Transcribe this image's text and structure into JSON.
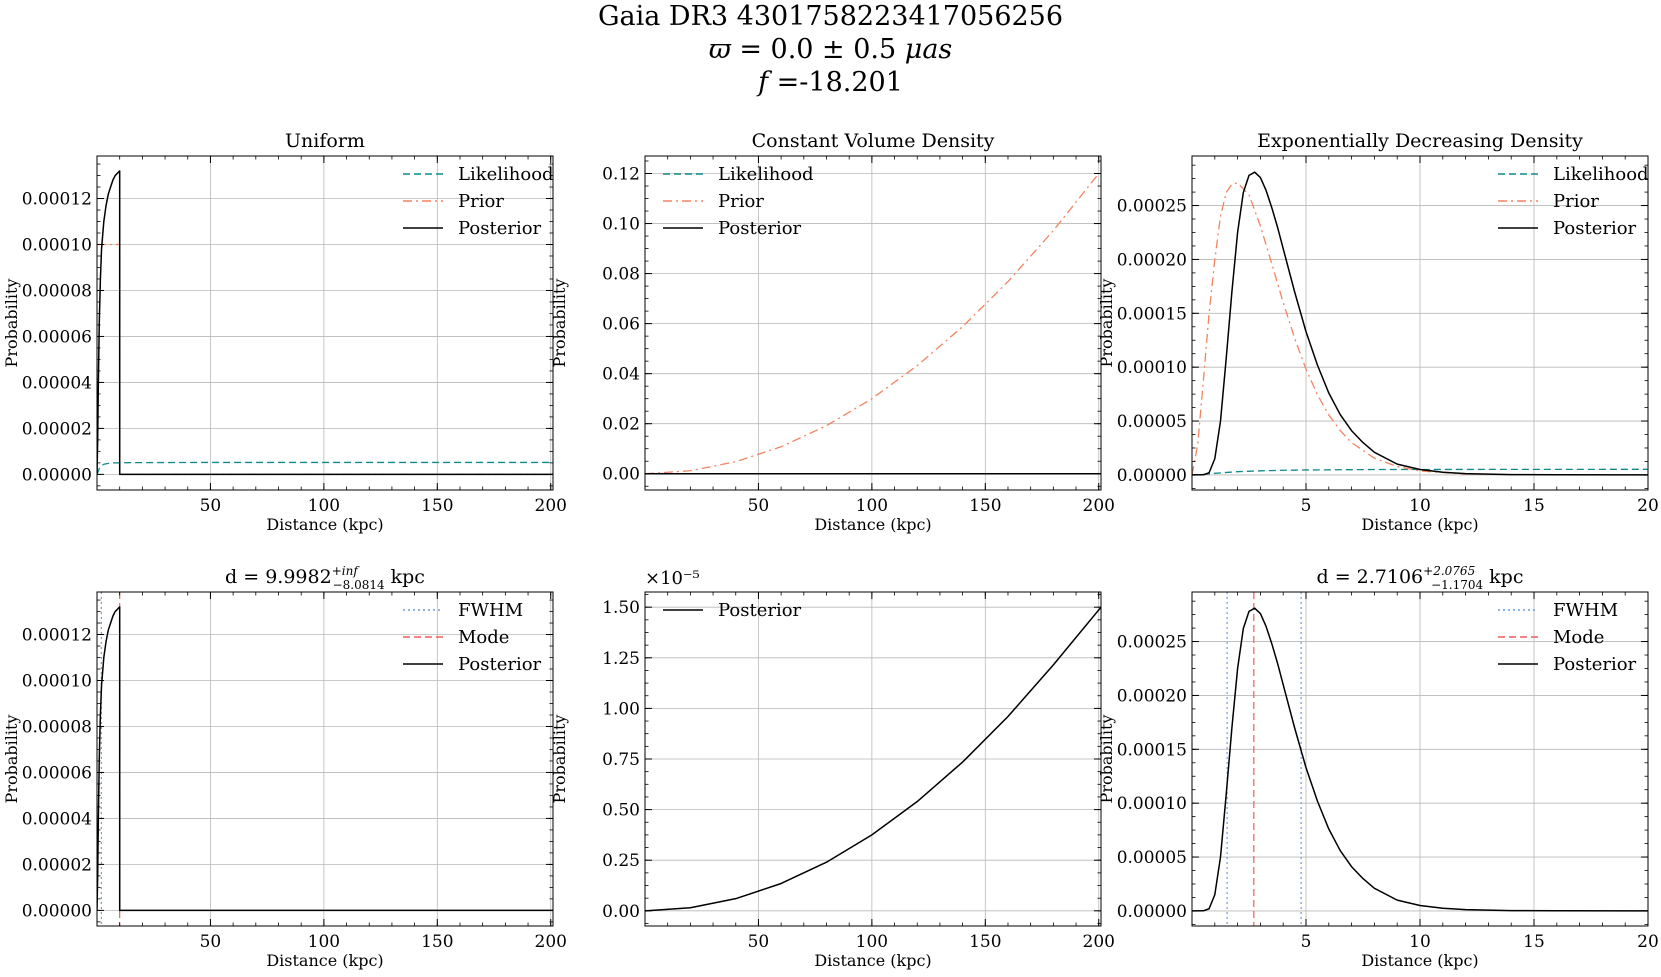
{
  "figure": {
    "suptitle_line1": "Gaia DR3 4301758223417056256",
    "suptitle_line2_symbol": "ϖ",
    "suptitle_line2_rest": " = 0.0 ± 0.5 ",
    "suptitle_line2_unit": "μas",
    "suptitle_line3_symbol": "f",
    "suptitle_line3_rest": " =-18.201"
  },
  "colors": {
    "likelihood": "#0e8a8a",
    "prior": "#f4845f",
    "posterior": "#000000",
    "fwhm": "#6a9ed6",
    "mode": "#f25b5b",
    "grid": "#b0b0b0"
  },
  "chart_data": [
    {
      "type": "line",
      "title": "Uniform",
      "xlabel": "Distance (kpc)",
      "ylabel": "Probability",
      "xlim": [
        0,
        201
      ],
      "ylim": [
        -6.8e-06,
        0.0001385
      ],
      "xticks": [
        50,
        100,
        150,
        200
      ],
      "xtick_labels": [
        "50",
        "100",
        "150",
        "200"
      ],
      "yticks": [
        0,
        2e-05,
        4e-05,
        6e-05,
        8e-05,
        0.0001,
        0.00012
      ],
      "ytick_labels": [
        "0.00000",
        "0.00002",
        "0.00004",
        "0.00006",
        "0.00008",
        "0.00010",
        "0.00012"
      ],
      "grid": true,
      "legend_position": "top-right",
      "series": [
        {
          "name": "Likelihood",
          "style": "dashed",
          "color": "#0e8a8a",
          "x": [
            0,
            1,
            2,
            3,
            5,
            8,
            15,
            50,
            100,
            150,
            201
          ],
          "y": [
            0,
            2.5e-06,
            3.8e-06,
            4.4e-06,
            4.8e-06,
            5e-06,
            5.1e-06,
            5.2e-06,
            5.2e-06,
            5.2e-06,
            5.2e-06
          ]
        },
        {
          "name": "Prior",
          "style": "dashdot",
          "color": "#f4845f",
          "x": [
            0,
            10,
            10.01,
            201
          ],
          "y": [
            0.0001,
            0.0001,
            0,
            0
          ]
        },
        {
          "name": "Posterior",
          "style": "solid",
          "color": "#000000",
          "x": [
            0,
            0.3,
            0.6,
            1,
            1.5,
            2,
            3,
            4,
            5,
            6,
            7,
            8,
            9,
            10,
            10.01,
            201
          ],
          "y": [
            0,
            1.5e-05,
            4e-05,
            6.6e-05,
            8.5e-05,
            9.8e-05,
            0.00011,
            0.000117,
            0.000122,
            0.000125,
            0.000128,
            0.00013,
            0.000131,
            0.000132,
            0,
            0
          ]
        }
      ]
    },
    {
      "type": "line",
      "title": "Constant Volume Density",
      "xlabel": "Distance (kpc)",
      "ylabel": "Probability",
      "xlim": [
        0,
        201
      ],
      "ylim": [
        -0.0065,
        0.127
      ],
      "xticks": [
        50,
        100,
        150,
        200
      ],
      "xtick_labels": [
        "50",
        "100",
        "150",
        "200"
      ],
      "yticks": [
        0,
        0.02,
        0.04,
        0.06,
        0.08,
        0.1,
        0.12
      ],
      "ytick_labels": [
        "0.00",
        "0.02",
        "0.04",
        "0.06",
        "0.08",
        "0.10",
        "0.12"
      ],
      "grid": true,
      "legend_position": "top-left",
      "series": [
        {
          "name": "Likelihood",
          "style": "dashed",
          "color": "#0e8a8a",
          "x": [
            0,
            201
          ],
          "y": [
            5e-06,
            5e-06
          ]
        },
        {
          "name": "Prior",
          "style": "dashdot",
          "color": "#f4845f",
          "x": [
            0,
            20,
            40,
            60,
            80,
            100,
            120,
            140,
            160,
            180,
            200
          ],
          "y": [
            0,
            0.0012,
            0.0048,
            0.0108,
            0.0192,
            0.03,
            0.0432,
            0.0588,
            0.0768,
            0.0972,
            0.12
          ]
        },
        {
          "name": "Posterior",
          "style": "solid",
          "color": "#000000",
          "x": [
            0,
            201
          ],
          "y": [
            1e-07,
            1e-07
          ]
        }
      ]
    },
    {
      "type": "line",
      "title": "Exponentially Decreasing Density",
      "xlabel": "Distance (kpc)",
      "ylabel": "Probability",
      "xlim": [
        0,
        20
      ],
      "ylim": [
        -1.4e-05,
        0.000296
      ],
      "xticks": [
        5,
        10,
        15,
        20
      ],
      "xtick_labels": [
        "5",
        "10",
        "15",
        "20"
      ],
      "yticks": [
        0,
        5e-05,
        0.0001,
        0.00015,
        0.0002,
        0.00025
      ],
      "ytick_labels": [
        "0.00000",
        "0.00005",
        "0.00010",
        "0.00015",
        "0.00020",
        "0.00025"
      ],
      "grid": true,
      "legend_position": "top-right",
      "series": [
        {
          "name": "Likelihood",
          "style": "dashed",
          "color": "#0e8a8a",
          "x": [
            0,
            0.5,
            1,
            2,
            3,
            4,
            5,
            8,
            12,
            20
          ],
          "y": [
            0,
            5e-07,
            1.5e-06,
            3e-06,
            3.8e-06,
            4.3e-06,
            4.6e-06,
            5e-06,
            5.1e-06,
            5.2e-06
          ]
        },
        {
          "name": "Prior",
          "style": "dashdot",
          "color": "#f4845f",
          "x": [
            0,
            0.25,
            0.5,
            0.75,
            1,
            1.25,
            1.5,
            1.75,
            2,
            2.5,
            3,
            3.5,
            4,
            4.5,
            5,
            5.5,
            6,
            6.5,
            7,
            8,
            9,
            10,
            12,
            15,
            20
          ],
          "y": [
            0,
            2.82e-05,
            8.78e-05,
            0.00015,
            0.0002,
            0.00024,
            0.000262,
            0.00027,
            0.000271,
            0.00026,
            0.000231,
            0.000196,
            0.00016,
            0.000127,
            9.82e-05,
            7.45e-05,
            5.57e-05,
            4.12e-05,
            3e-05,
            1.55e-05,
            7.8e-06,
            3.7e-06,
            8e-07,
            1e-07,
            0
          ]
        },
        {
          "name": "Posterior",
          "style": "solid",
          "color": "#000000",
          "x": [
            0,
            0.5,
            0.75,
            1,
            1.25,
            1.5,
            1.75,
            2,
            2.25,
            2.5,
            2.75,
            3,
            3.25,
            3.5,
            3.75,
            4,
            4.5,
            5,
            5.5,
            6,
            6.5,
            7,
            7.5,
            8,
            9,
            10,
            11,
            12,
            14,
            16,
            20
          ],
          "y": [
            0,
            1e-07,
            2e-06,
            1.5e-05,
            5e-05,
            0.000108,
            0.00017,
            0.000225,
            0.000262,
            0.000278,
            0.000281,
            0.000276,
            0.000264,
            0.000248,
            0.00023,
            0.00021,
            0.00017,
            0.000133,
            0.000102,
            7.6e-05,
            5.6e-05,
            4.1e-05,
            3e-05,
            2.1e-05,
            1e-05,
            5e-06,
            2.5e-06,
            1.2e-06,
            3e-07,
            1e-07,
            0
          ]
        }
      ]
    },
    {
      "type": "line",
      "title": "d = 9.9982",
      "title_sup": "+inf",
      "title_sub": "−8.0814",
      "title_unit": "kpc",
      "xlabel": "Distance (kpc)",
      "ylabel": "Probability",
      "xlim": [
        0,
        201
      ],
      "ylim": [
        -6.8e-06,
        0.0001385
      ],
      "xticks": [
        50,
        100,
        150,
        200
      ],
      "xtick_labels": [
        "50",
        "100",
        "150",
        "200"
      ],
      "yticks": [
        0,
        2e-05,
        4e-05,
        6e-05,
        8e-05,
        0.0001,
        0.00012
      ],
      "ytick_labels": [
        "0.00000",
        "0.00002",
        "0.00004",
        "0.00006",
        "0.00008",
        "0.00010",
        "0.00012"
      ],
      "grid": true,
      "legend_position": "top-right",
      "vlines": [
        {
          "name": "FWHM",
          "style": "dotted",
          "color": "#6a9ed6",
          "x": [
            1.9168
          ]
        },
        {
          "name": "Mode",
          "style": "dashed",
          "color": "#f25b5b",
          "x": [
            9.9982
          ]
        }
      ],
      "series": [
        {
          "name": "Posterior",
          "style": "solid",
          "color": "#000000",
          "x": [
            0,
            0.3,
            0.6,
            1,
            1.5,
            2,
            3,
            4,
            5,
            6,
            7,
            8,
            9,
            10,
            10.01,
            201
          ],
          "y": [
            0,
            1.5e-05,
            4e-05,
            6.6e-05,
            8.5e-05,
            9.8e-05,
            0.00011,
            0.000117,
            0.000122,
            0.000125,
            0.000128,
            0.00013,
            0.000131,
            0.000132,
            0,
            0
          ]
        }
      ]
    },
    {
      "type": "line",
      "title": "",
      "xlabel": "Distance (kpc)",
      "ylabel": "Probability",
      "y_offset_label": "×10⁻⁵",
      "xlim": [
        0,
        201
      ],
      "ylim": [
        -0.075,
        1.575
      ],
      "xticks": [
        50,
        100,
        150,
        200
      ],
      "xtick_labels": [
        "50",
        "100",
        "150",
        "200"
      ],
      "yticks": [
        0,
        0.25,
        0.5,
        0.75,
        1,
        1.25,
        1.5
      ],
      "ytick_labels": [
        "0.00",
        "0.25",
        "0.50",
        "0.75",
        "1.00",
        "1.25",
        "1.50"
      ],
      "grid": true,
      "legend_position": "top-left",
      "series": [
        {
          "name": "Posterior",
          "style": "solid",
          "color": "#000000",
          "x": [
            0,
            20,
            40,
            60,
            80,
            100,
            120,
            140,
            160,
            180,
            201
          ],
          "y": [
            0,
            0.015,
            0.06,
            0.135,
            0.24,
            0.375,
            0.54,
            0.735,
            0.96,
            1.215,
            1.5
          ]
        }
      ]
    },
    {
      "type": "line",
      "title": "d = 2.7106",
      "title_sup": "+2.0765",
      "title_sub": "−1.1704",
      "title_unit": "kpc",
      "xlabel": "Distance (kpc)",
      "ylabel": "Probability",
      "xlim": [
        0,
        20
      ],
      "ylim": [
        -1.4e-05,
        0.000296
      ],
      "xticks": [
        5,
        10,
        15,
        20
      ],
      "xtick_labels": [
        "5",
        "10",
        "15",
        "20"
      ],
      "yticks": [
        0,
        5e-05,
        0.0001,
        0.00015,
        0.0002,
        0.00025
      ],
      "ytick_labels": [
        "0.00000",
        "0.00005",
        "0.00010",
        "0.00015",
        "0.00020",
        "0.00025"
      ],
      "grid": true,
      "legend_position": "top-right",
      "vlines": [
        {
          "name": "FWHM",
          "style": "dotted",
          "color": "#6a9ed6",
          "x": [
            1.5402,
            4.7871
          ]
        },
        {
          "name": "Mode",
          "style": "dashed",
          "color": "#f25b5b",
          "x": [
            2.7106
          ]
        }
      ],
      "series": [
        {
          "name": "Posterior",
          "style": "solid",
          "color": "#000000",
          "x": [
            0,
            0.5,
            0.75,
            1,
            1.25,
            1.5,
            1.75,
            2,
            2.25,
            2.5,
            2.75,
            3,
            3.25,
            3.5,
            3.75,
            4,
            4.5,
            5,
            5.5,
            6,
            6.5,
            7,
            7.5,
            8,
            9,
            10,
            11,
            12,
            14,
            16,
            20
          ],
          "y": [
            0,
            1e-07,
            2e-06,
            1.5e-05,
            5e-05,
            0.000108,
            0.00017,
            0.000225,
            0.000262,
            0.000278,
            0.000281,
            0.000276,
            0.000264,
            0.000248,
            0.00023,
            0.00021,
            0.00017,
            0.000133,
            0.000102,
            7.6e-05,
            5.6e-05,
            4.1e-05,
            3e-05,
            2.1e-05,
            1e-05,
            5e-06,
            2.5e-06,
            1.2e-06,
            3e-07,
            1e-07,
            0
          ]
        }
      ]
    }
  ]
}
